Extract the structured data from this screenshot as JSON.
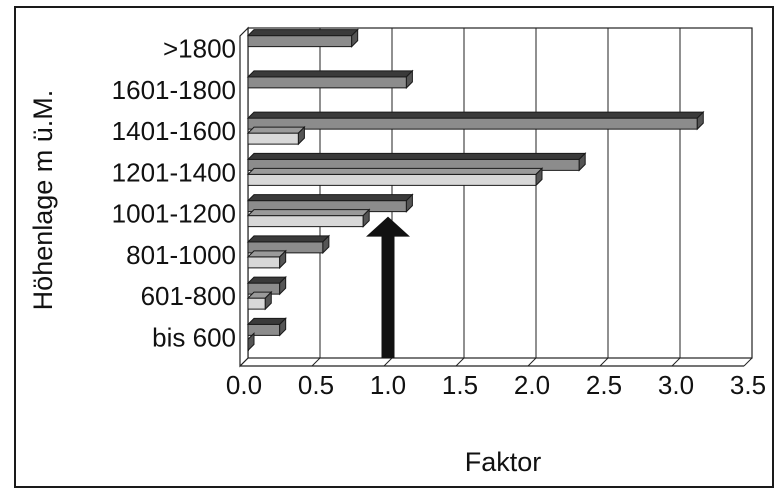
{
  "chart_data": {
    "type": "bar",
    "orientation": "horizontal",
    "title": "",
    "xlabel": "Faktor",
    "ylabel": "Höhenlage m ü.M.",
    "xlim": [
      0,
      3.5
    ],
    "xticks": [
      "0.0",
      "0.5",
      "1.0",
      "1.5",
      "2.0",
      "2.5",
      "3.0",
      "3.5"
    ],
    "categories": [
      "bis 600",
      "601-800",
      "801-1000",
      "1001-1200",
      "1201-1400",
      "1401-1600",
      "1601-1800",
      ">1800"
    ],
    "series": [
      {
        "values": [
          0.22,
          0.22,
          0.52,
          1.1,
          2.3,
          3.12,
          1.1,
          0.72
        ]
      },
      {
        "values": [
          0.0,
          0.12,
          0.22,
          0.8,
          2.0,
          0.35,
          null,
          null
        ]
      }
    ],
    "reference_arrow": {
      "x": 1.0,
      "y_top_category": "1001-1200"
    },
    "grid": {
      "vertical": true,
      "horizontal": false
    },
    "legend": "none",
    "colors": {
      "series_a": "#8c8c8c",
      "series_b": "#d8d8d8",
      "series_a_top": "#3a3a3a",
      "series_b_top": "#9a9a9a",
      "arrow": "#111111"
    }
  }
}
